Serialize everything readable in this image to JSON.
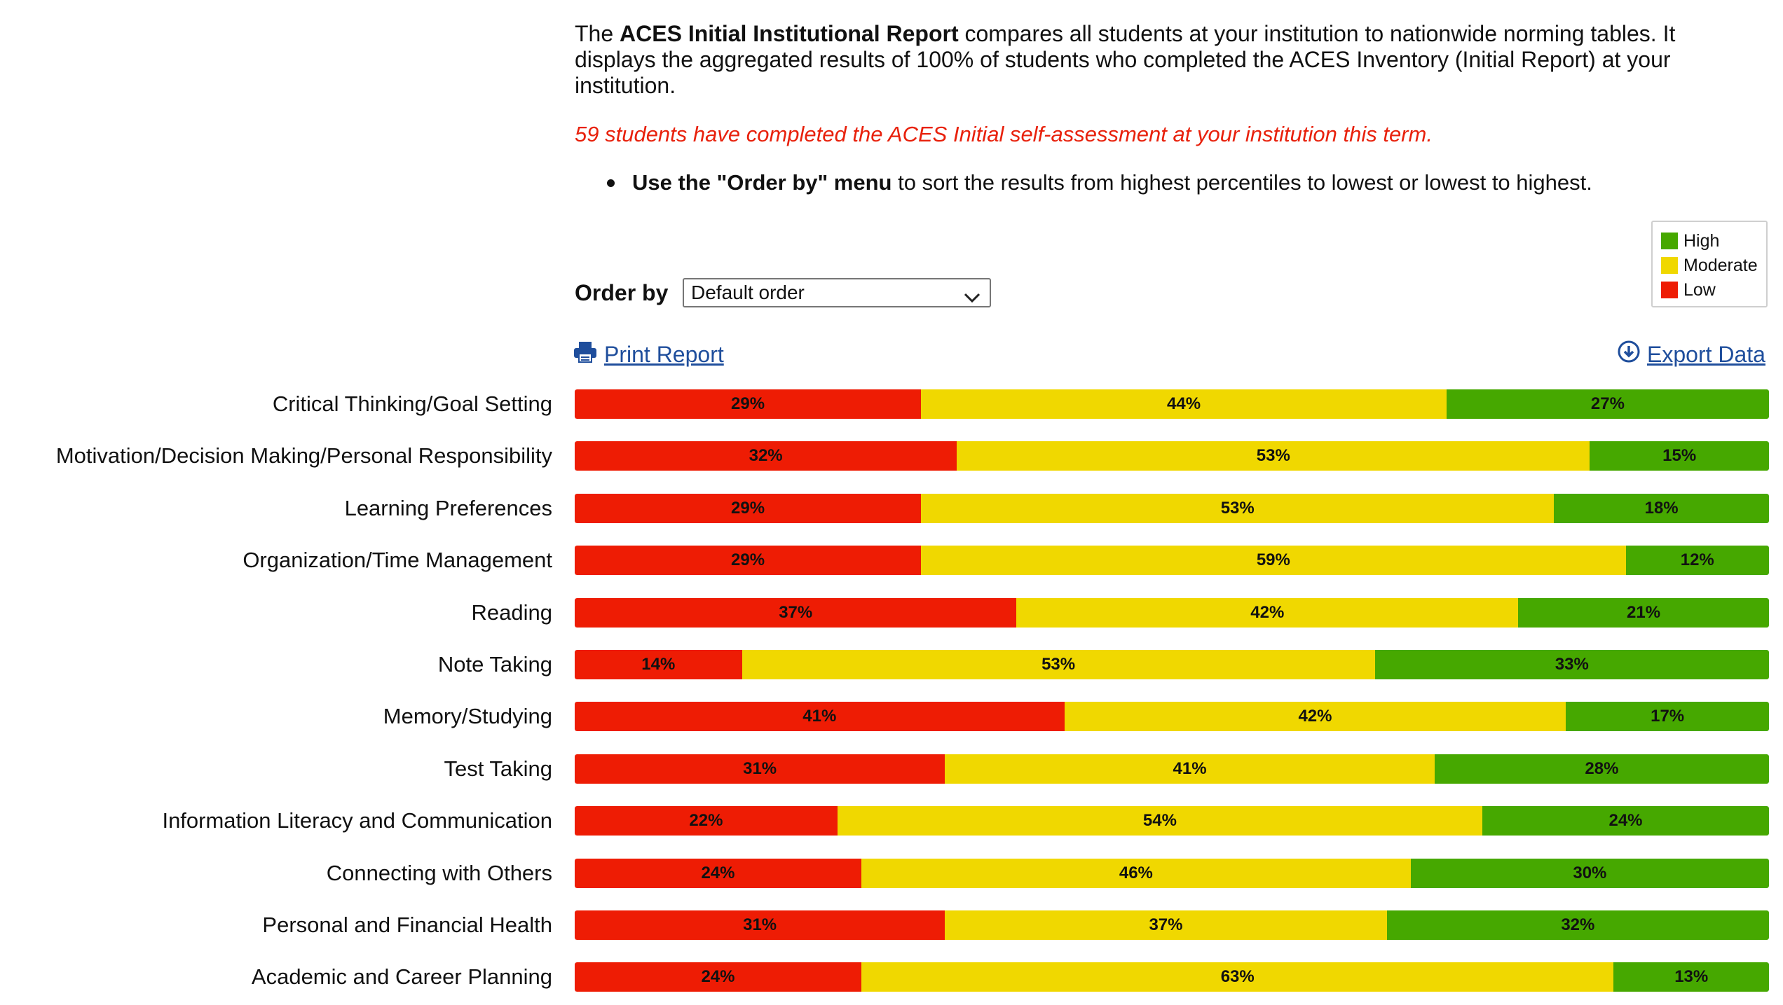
{
  "intro": {
    "pre": "The ",
    "bold": "ACES Initial Institutional Report",
    "post": " compares all students at your institution to nationwide norming tables. It displays the aggregated results of 100% of students who completed the ACES Inventory (Initial Report) at your institution."
  },
  "completed_notice": "59 students have completed the ACES Initial self-assessment at your institution this term.",
  "instruction": {
    "bold": "Use the \"Order by\" menu",
    "rest": " to sort the results from highest percentiles to lowest or lowest to highest."
  },
  "legend": [
    {
      "label": "High",
      "color": "#46a800"
    },
    {
      "label": "Moderate",
      "color": "#f0d800"
    },
    {
      "label": "Low",
      "color": "#ee1c04"
    }
  ],
  "order_by": {
    "label": "Order by",
    "selected": "Default order"
  },
  "links": {
    "print": "Print Report",
    "export": "Export Data"
  },
  "colors": {
    "low": "#ee1c04",
    "moderate": "#f0d800",
    "high": "#46a800"
  },
  "chart_data": {
    "type": "bar",
    "orientation": "horizontal-stacked-percent",
    "categories": [
      "Critical Thinking/Goal Setting",
      "Motivation/Decision Making/Personal Responsibility",
      "Learning Preferences",
      "Organization/Time Management",
      "Reading",
      "Note Taking",
      "Memory/Studying",
      "Test Taking",
      "Information Literacy and Communication",
      "Connecting with Others",
      "Personal and Financial Health",
      "Academic and Career Planning"
    ],
    "series": [
      {
        "name": "Low",
        "values": [
          29,
          32,
          29,
          29,
          37,
          14,
          41,
          31,
          22,
          24,
          31,
          24
        ]
      },
      {
        "name": "Moderate",
        "values": [
          44,
          53,
          53,
          59,
          42,
          53,
          42,
          41,
          54,
          46,
          37,
          63
        ]
      },
      {
        "name": "High",
        "values": [
          27,
          15,
          18,
          12,
          21,
          33,
          17,
          28,
          24,
          30,
          32,
          13
        ]
      }
    ],
    "value_format": "{v}%",
    "legend_position": "top-right"
  }
}
